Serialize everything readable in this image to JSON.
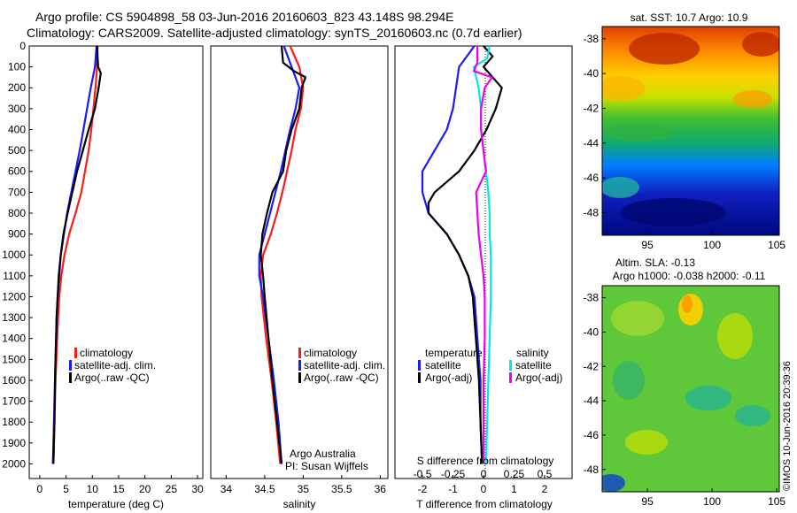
{
  "header": {
    "line1": "Argo profile: CS 5904898_58 03-Jun-2016 20160603_823 43.148S 98.294E",
    "line2": "Climatology: CARS2009. Satellite-adjusted climatology: synTS_20160603.nc (0.7d earlier)"
  },
  "colors": {
    "climatology": "#ff1a1a",
    "satellite": "#1a1aff",
    "argo": "#000000",
    "satellite_s": "#00e8e8",
    "argo_s": "#ee00ee"
  },
  "depth_ticks": [
    "0",
    "100",
    "200",
    "300",
    "400",
    "500",
    "600",
    "700",
    "800",
    "900",
    "1000",
    "1100",
    "1200",
    "1300",
    "1400",
    "1500",
    "1600",
    "1700",
    "1800",
    "1900",
    "2000"
  ],
  "chart_data": [
    {
      "type": "line",
      "name": "temperature-profile",
      "xlabel": "temperature (deg C)",
      "xlim": [
        -2,
        31
      ],
      "ylim": [
        0,
        2070
      ],
      "xticks": [
        "0",
        "5",
        "10",
        "15",
        "20",
        "25",
        "30"
      ],
      "xtick_values": [
        0,
        5,
        10,
        15,
        20,
        25,
        30
      ],
      "legend": [
        "climatology",
        "satellite-adj. clim.",
        "Argo(..raw -QC)"
      ],
      "series": [
        {
          "name": "climatology",
          "color": "#ff1a1a",
          "depth": [
            0,
            100,
            200,
            300,
            400,
            500,
            600,
            700,
            800,
            900,
            1000,
            1100,
            1200,
            1300,
            1400,
            1600,
            2000
          ],
          "values": [
            11,
            10.9,
            10.6,
            10.2,
            9.8,
            9.3,
            8.6,
            7.9,
            6.8,
            5.6,
            4.7,
            4.1,
            3.7,
            3.5,
            3.3,
            3.0,
            2.6
          ]
        },
        {
          "name": "satellite-adj. clim.",
          "color": "#1a1aff",
          "depth": [
            0,
            100,
            200,
            300,
            400,
            500,
            600,
            700,
            800,
            900,
            1000,
            1100,
            1200,
            1300,
            1400,
            1600,
            2000
          ],
          "values": [
            10.8,
            10.5,
            9.7,
            9.0,
            8.3,
            7.6,
            6.8,
            6.0,
            5.2,
            4.6,
            4.0,
            3.7,
            3.4,
            3.2,
            3.1,
            2.9,
            2.5
          ]
        },
        {
          "name": "Argo(..raw -QC)",
          "color": "#000000",
          "depth": [
            0,
            50,
            100,
            130,
            200,
            300,
            400,
            500,
            600,
            700,
            800,
            900,
            1000,
            1100,
            1200,
            1300,
            1400,
            1600,
            1800,
            2000
          ],
          "values": [
            10.9,
            11.0,
            11.1,
            11.6,
            11.2,
            10.5,
            9.3,
            8.2,
            7.1,
            6.2,
            5.3,
            4.5,
            4.0,
            3.6,
            3.4,
            3.2,
            3.1,
            2.9,
            2.8,
            2.6
          ]
        }
      ]
    },
    {
      "type": "line",
      "name": "salinity-profile",
      "xlabel": "salinity",
      "xlim": [
        33.8,
        36.1
      ],
      "ylim": [
        0,
        2070
      ],
      "xticks": [
        "34",
        "34.5",
        "35",
        "35.5",
        "36"
      ],
      "xtick_values": [
        34,
        34.5,
        35,
        35.5,
        36
      ],
      "legend": [
        "climatology",
        "satellite-adj. clim.",
        "Argo(..raw -QC)"
      ],
      "notes": [
        "Argo Australia",
        "PI: Susan Wijffels"
      ],
      "series": [
        {
          "name": "climatology",
          "color": "#ff1a1a",
          "depth": [
            0,
            100,
            200,
            300,
            400,
            500,
            600,
            700,
            800,
            900,
            1000,
            1100,
            1200,
            1400,
            1600,
            1800,
            2000
          ],
          "values": [
            34.83,
            34.95,
            35.0,
            34.97,
            34.9,
            34.85,
            34.79,
            34.73,
            34.66,
            34.58,
            34.48,
            34.45,
            34.46,
            34.52,
            34.59,
            34.65,
            34.7
          ]
        },
        {
          "name": "satellite-adj. clim.",
          "color": "#1a1aff",
          "depth": [
            0,
            100,
            200,
            300,
            400,
            500,
            600,
            700,
            800,
            900,
            1000,
            1100,
            1200,
            1400,
            1600,
            1800,
            2000
          ],
          "values": [
            34.75,
            34.85,
            34.95,
            34.9,
            34.83,
            34.77,
            34.71,
            34.64,
            34.57,
            34.5,
            34.43,
            34.43,
            34.48,
            34.55,
            34.62,
            34.68,
            34.72
          ]
        },
        {
          "name": "Argo(..raw -QC)",
          "color": "#000000",
          "depth": [
            0,
            80,
            120,
            150,
            200,
            300,
            400,
            500,
            600,
            700,
            800,
            900,
            1000,
            1100,
            1200,
            1400,
            1600,
            1800,
            2000
          ],
          "values": [
            34.72,
            34.74,
            34.88,
            35.03,
            34.98,
            34.95,
            34.85,
            34.78,
            34.74,
            34.6,
            34.53,
            34.47,
            34.45,
            34.48,
            34.5,
            34.55,
            34.6,
            34.66,
            34.72
          ]
        }
      ]
    },
    {
      "type": "line",
      "name": "difference-profile",
      "xlabel": "T difference from climatology",
      "xlim": [
        -2.9,
        2.9
      ],
      "ylim": [
        0,
        2070
      ],
      "xticks": [
        "-2",
        "-1",
        "0",
        "1",
        "2"
      ],
      "xtick_values": [
        -2,
        -1,
        0,
        1,
        2
      ],
      "top_label": "S difference from climatology",
      "top_ticks": [
        "-0.5",
        "-0.25",
        "0",
        "0.25",
        "0.5"
      ],
      "top_tick_values": [
        -0.5,
        -0.25,
        0,
        0.25,
        0.5
      ],
      "legend_temperature": {
        "title": "temperature",
        "items": [
          "satellite",
          "Argo(-adj)"
        ]
      },
      "legend_salinity": {
        "title": "salinity",
        "items": [
          "satellite",
          "Argo(-adj)"
        ]
      },
      "series": [
        {
          "name": "satellite",
          "color": "#1a1aff",
          "depth": [
            0,
            100,
            200,
            300,
            400,
            500,
            600,
            700,
            800,
            900,
            1000,
            1100,
            1200,
            1400,
            1600,
            1800,
            2000
          ],
          "values": [
            -0.3,
            -0.8,
            -0.9,
            -1.0,
            -1.2,
            -1.6,
            -2.0,
            -2.0,
            -1.8,
            -1.2,
            -0.8,
            -0.5,
            -0.3,
            -0.2,
            -0.1,
            -0.1,
            -0.05
          ]
        },
        {
          "name": "Argo(-adj)",
          "color": "#000000",
          "depth": [
            0,
            50,
            100,
            200,
            300,
            400,
            500,
            600,
            700,
            750,
            800,
            900,
            1000,
            1100,
            1200,
            1400,
            1600,
            1800,
            2000
          ],
          "values": [
            0,
            0.3,
            0,
            0.6,
            0.4,
            0.1,
            -0.3,
            -0.8,
            -1.6,
            -1.8,
            -1.8,
            -1.2,
            -0.8,
            -0.5,
            -0.35,
            -0.25,
            -0.15,
            -0.1,
            -0.05
          ]
        },
        {
          "name": "satellite",
          "color": "#00e8e8",
          "depth": [
            0,
            60,
            100,
            200,
            300,
            400,
            500,
            600,
            700,
            800,
            900,
            1000,
            1100,
            1200,
            1400,
            1600,
            1800,
            2000
          ],
          "values": [
            0.05,
            0.03,
            -0.08,
            -0.04,
            -0.02,
            -0.02,
            0,
            0.02,
            0.04,
            0.05,
            0.05,
            0.06,
            0.06,
            0.06,
            0.05,
            0.04,
            0.03,
            0.02
          ]
        },
        {
          "name": "Argo(-adj)",
          "color": "#ee00ee",
          "depth": [
            0,
            80,
            120,
            150,
            200,
            300,
            400,
            500,
            600,
            700,
            800,
            900,
            1000,
            1100,
            1200,
            1400,
            1600,
            1800,
            2000
          ],
          "values": [
            -0.05,
            -0.05,
            -0.08,
            0.07,
            0.01,
            -0.02,
            -0.02,
            0,
            0.02,
            -0.06,
            -0.05,
            -0.04,
            -0.02,
            0,
            0.01,
            0.01,
            0.0,
            0.0,
            0.0
          ]
        }
      ]
    },
    {
      "type": "heatmap",
      "name": "sst-map",
      "title": "sat. SST: 10.7 Argo: 10.9",
      "xlim": [
        91.5,
        105.2
      ],
      "ylim": [
        -49.3,
        -37.3
      ],
      "xticks": [
        "95",
        "100",
        "105"
      ],
      "xtick_values": [
        95,
        100,
        105
      ],
      "yticks": [
        "-38",
        "-40",
        "-42",
        "-44",
        "-46",
        "-48"
      ],
      "ytick_values": [
        -38,
        -40,
        -42,
        -44,
        -46,
        -48
      ]
    },
    {
      "type": "heatmap",
      "name": "sla-map",
      "title": "Altim. SLA: -0.13",
      "subtitle": "Argo h1000: -0.038 h2000: -0.11",
      "xlim": [
        91.5,
        105.2
      ],
      "ylim": [
        -49.3,
        -37.3
      ],
      "xticks": [
        "95",
        "100",
        "105"
      ],
      "xtick_values": [
        95,
        100,
        105
      ],
      "yticks": [
        "-38",
        "-40",
        "-42",
        "-44",
        "-46",
        "-48"
      ],
      "ytick_values": [
        -38,
        -40,
        -42,
        -44,
        -46,
        -48
      ]
    }
  ],
  "footer": {
    "credit": "©IMOS 10-Jun-2016 20:39:36"
  }
}
